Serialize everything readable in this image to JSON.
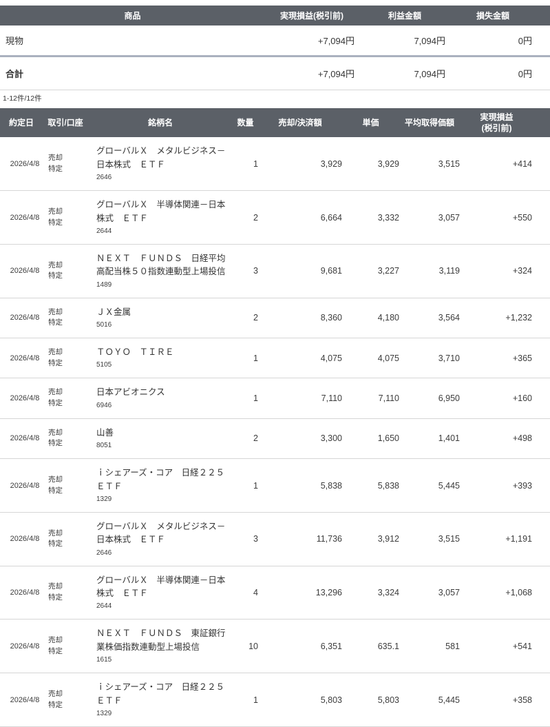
{
  "summary_table": {
    "columns": {
      "product": "商品",
      "realized_pl": "実現損益(税引前)",
      "profit": "利益金額",
      "loss": "損失金額"
    },
    "rows": [
      {
        "product": "現物",
        "realized_pl": "+7,094円",
        "profit": "7,094円",
        "loss": "0円"
      },
      {
        "product": "合計",
        "realized_pl": "+7,094円",
        "profit": "7,094円",
        "loss": "0円"
      }
    ]
  },
  "pagination": {
    "label": "1-12件/12件"
  },
  "trades_table": {
    "columns": {
      "date": "約定日",
      "trade_account": "取引/口座",
      "name": "銘柄名",
      "quantity": "数量",
      "amount": "売却/決済額",
      "unit_price": "単価",
      "avg_cost": "平均取得価額",
      "realized_pl_line1": "実現損益",
      "realized_pl_line2": "(税引前)"
    },
    "rows": [
      {
        "date": "2026/4/8",
        "trade": "売却",
        "account": "特定",
        "name": "グローバルＸ　メタルビジネス－日本株式　ＥＴＦ",
        "code": "2646",
        "quantity": "1",
        "amount": "3,929",
        "unit_price": "3,929",
        "avg_cost": "3,515",
        "realized_pl": "+414"
      },
      {
        "date": "2026/4/8",
        "trade": "売却",
        "account": "特定",
        "name": "グローバルＸ　半導体関連－日本株式　ＥＴＦ",
        "code": "2644",
        "quantity": "2",
        "amount": "6,664",
        "unit_price": "3,332",
        "avg_cost": "3,057",
        "realized_pl": "+550"
      },
      {
        "date": "2026/4/8",
        "trade": "売却",
        "account": "特定",
        "name": "ＮＥＸＴ　ＦＵＮＤＳ　日経平均高配当株５０指数連動型上場投信",
        "code": "1489",
        "quantity": "3",
        "amount": "9,681",
        "unit_price": "3,227",
        "avg_cost": "3,119",
        "realized_pl": "+324"
      },
      {
        "date": "2026/4/8",
        "trade": "売却",
        "account": "特定",
        "name": "ＪＸ金属",
        "code": "5016",
        "quantity": "2",
        "amount": "8,360",
        "unit_price": "4,180",
        "avg_cost": "3,564",
        "realized_pl": "+1,232"
      },
      {
        "date": "2026/4/8",
        "trade": "売却",
        "account": "特定",
        "name": "ＴＯＹＯ　ＴＩＲＥ",
        "code": "5105",
        "quantity": "1",
        "amount": "4,075",
        "unit_price": "4,075",
        "avg_cost": "3,710",
        "realized_pl": "+365"
      },
      {
        "date": "2026/4/8",
        "trade": "売却",
        "account": "特定",
        "name": "日本アビオニクス",
        "code": "6946",
        "quantity": "1",
        "amount": "7,110",
        "unit_price": "7,110",
        "avg_cost": "6,950",
        "realized_pl": "+160"
      },
      {
        "date": "2026/4/8",
        "trade": "売却",
        "account": "特定",
        "name": "山善",
        "code": "8051",
        "quantity": "2",
        "amount": "3,300",
        "unit_price": "1,650",
        "avg_cost": "1,401",
        "realized_pl": "+498"
      },
      {
        "date": "2026/4/8",
        "trade": "売却",
        "account": "特定",
        "name": "ｉシェアーズ・コア　日経２２５　ＥＴＦ",
        "code": "1329",
        "quantity": "1",
        "amount": "5,838",
        "unit_price": "5,838",
        "avg_cost": "5,445",
        "realized_pl": "+393"
      },
      {
        "date": "2026/4/8",
        "trade": "売却",
        "account": "特定",
        "name": "グローバルＸ　メタルビジネス－日本株式　ＥＴＦ",
        "code": "2646",
        "quantity": "3",
        "amount": "11,736",
        "unit_price": "3,912",
        "avg_cost": "3,515",
        "realized_pl": "+1,191"
      },
      {
        "date": "2026/4/8",
        "trade": "売却",
        "account": "特定",
        "name": "グローバルＸ　半導体関連－日本株式　ＥＴＦ",
        "code": "2644",
        "quantity": "4",
        "amount": "13,296",
        "unit_price": "3,324",
        "avg_cost": "3,057",
        "realized_pl": "+1,068"
      },
      {
        "date": "2026/4/8",
        "trade": "売却",
        "account": "特定",
        "name": "ＮＥＸＴ　ＦＵＮＤＳ　東証銀行業株価指数連動型上場投信",
        "code": "1615",
        "quantity": "10",
        "amount": "6,351",
        "unit_price": "635.1",
        "avg_cost": "581",
        "realized_pl": "+541"
      },
      {
        "date": "2026/4/8",
        "trade": "売却",
        "account": "特定",
        "name": "ｉシェアーズ・コア　日経２２５　ＥＴＦ",
        "code": "1329",
        "quantity": "1",
        "amount": "5,803",
        "unit_price": "5,803",
        "avg_cost": "5,445",
        "realized_pl": "+358"
      }
    ]
  },
  "colors": {
    "header_bg": "#5b6067",
    "accent_pink": "#e8457f",
    "row_border": "#d6d6d6",
    "summary_divider": "#aab1bf"
  }
}
